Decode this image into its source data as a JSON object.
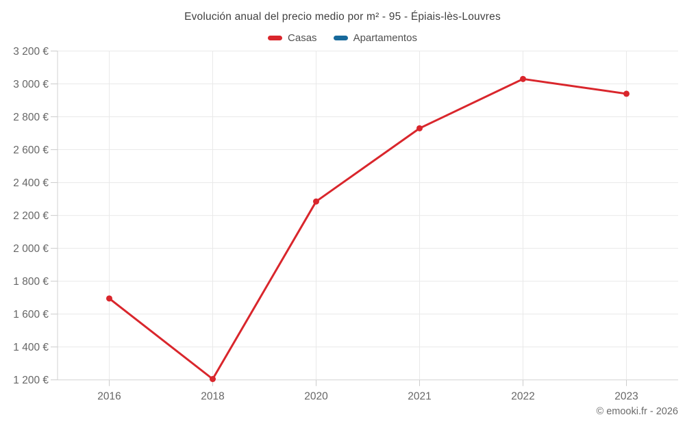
{
  "chart": {
    "title": "Evolución anual del precio medio por m² - 95 - Épiais-lès-Louvres",
    "credit": "© emooki.fr - 2026",
    "colors": {
      "casas": "#d9262c",
      "apartamentos": "#17699b",
      "grid": "#e9e9e9",
      "axis_line": "#d2d2d2",
      "tick": "#cccccc",
      "title_text": "#3f3f3f",
      "axis_text": "#666666",
      "legend_text": "#4f4f4f",
      "credit_text": "#6b6b6b"
    }
  },
  "chart_data": {
    "type": "line",
    "title": "Evolución anual del precio medio por m² - 95 - Épiais-lès-Louvres",
    "categories": [
      "2016",
      "2018",
      "2020",
      "2021",
      "2022",
      "2023"
    ],
    "series": [
      {
        "name": "Casas",
        "color": "#d9262c",
        "values": [
          1695,
          1205,
          2285,
          2730,
          3030,
          2940
        ]
      },
      {
        "name": "Apartamentos",
        "color": "#17699b",
        "values": []
      }
    ],
    "xlabel": "",
    "ylabel": "",
    "ylim": [
      1200,
      3200
    ],
    "y_tick_step": 200,
    "y_tick_labels": [
      "1 200 €",
      "1 400 €",
      "1 600 €",
      "1 800 €",
      "2 000 €",
      "2 200 €",
      "2 400 €",
      "2 600 €",
      "2 800 €",
      "3 000 €",
      "3 200 €"
    ],
    "grid": true,
    "legend_position": "top",
    "marker_radius": 4.5,
    "line_width": 3
  }
}
